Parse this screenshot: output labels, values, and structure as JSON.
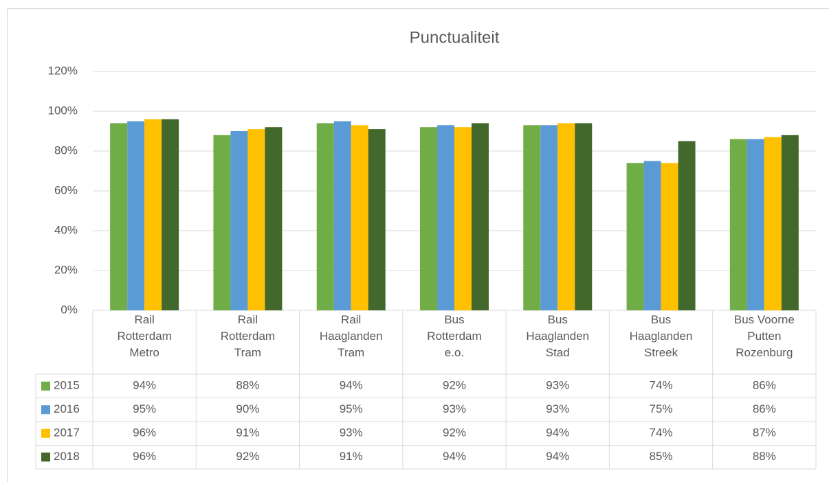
{
  "chart_data": {
    "type": "bar",
    "title": "Punctualiteit",
    "categories": [
      "Rail\nRotterdam\nMetro",
      "Rail\nRotterdam\nTram",
      "Rail\nHaaglanden\nTram",
      "Bus\nRotterdam\ne.o.",
      "Bus\nHaaglanden\nStad",
      "Bus\nHaaglanden\nStreek",
      "Bus Voorne\nPutten\nRozenburg"
    ],
    "series": [
      {
        "name": "2015",
        "color": "#70ad47",
        "values": [
          94,
          88,
          94,
          92,
          93,
          74,
          86
        ],
        "value_labels": [
          "94%",
          "88%",
          "94%",
          "92%",
          "93%",
          "74%",
          "86%"
        ]
      },
      {
        "name": "2016",
        "color": "#5b9bd5",
        "values": [
          95,
          90,
          95,
          93,
          93,
          75,
          86
        ],
        "value_labels": [
          "95%",
          "90%",
          "95%",
          "93%",
          "93%",
          "75%",
          "86%"
        ]
      },
      {
        "name": "2017",
        "color": "#ffc000",
        "values": [
          96,
          91,
          93,
          92,
          94,
          74,
          87
        ],
        "value_labels": [
          "96%",
          "91%",
          "93%",
          "92%",
          "94%",
          "74%",
          "87%"
        ]
      },
      {
        "name": "2018",
        "color": "#43682b",
        "values": [
          96,
          92,
          91,
          94,
          94,
          85,
          88
        ],
        "value_labels": [
          "96%",
          "92%",
          "91%",
          "94%",
          "94%",
          "85%",
          "88%"
        ]
      }
    ],
    "ylim": [
      0,
      120
    ],
    "yticks": [
      {
        "value": 0,
        "label": "0%"
      },
      {
        "value": 20,
        "label": "20%"
      },
      {
        "value": 40,
        "label": "40%"
      },
      {
        "value": 60,
        "label": "60%"
      },
      {
        "value": 80,
        "label": "80%"
      },
      {
        "value": 100,
        "label": "100%"
      },
      {
        "value": 120,
        "label": "120%"
      }
    ],
    "grid": true
  }
}
